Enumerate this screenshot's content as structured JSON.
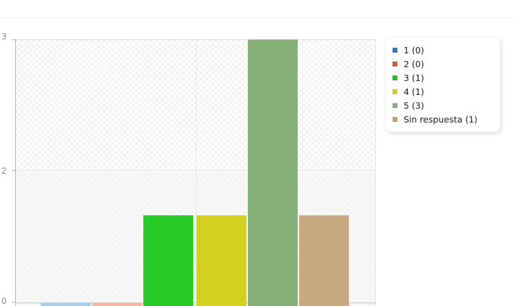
{
  "chart_data": {
    "type": "bar",
    "title": "",
    "xlabel": "",
    "ylabel": "",
    "categories": [
      "1",
      "2",
      "3",
      "4",
      "5",
      "Sin respuesta"
    ],
    "values": [
      0,
      0,
      1,
      1,
      3,
      1
    ],
    "ylim": [
      0,
      3
    ],
    "y_ticks": {
      "top": "3",
      "mid": "2",
      "bottom": "0"
    },
    "grid": true,
    "legend_position": "right",
    "legend": [
      {
        "label": "1 (0)",
        "color": "#2b78c8",
        "bar_color": "#a9cfe9"
      },
      {
        "label": "2 (0)",
        "color": "#dc5227",
        "bar_color": "#f5b9a2"
      },
      {
        "label": "3 (1)",
        "color": "#24bc24",
        "bar_color": "#2bcb27"
      },
      {
        "label": "4 (1)",
        "color": "#c9cc1e",
        "bar_color": "#d3d021"
      },
      {
        "label": "5 (3)",
        "color": "#8bac80",
        "bar_color": "#87b077"
      },
      {
        "label": "Sin respuesta (1)",
        "color": "#bf9e6d",
        "bar_color": "#c8a981"
      }
    ]
  }
}
